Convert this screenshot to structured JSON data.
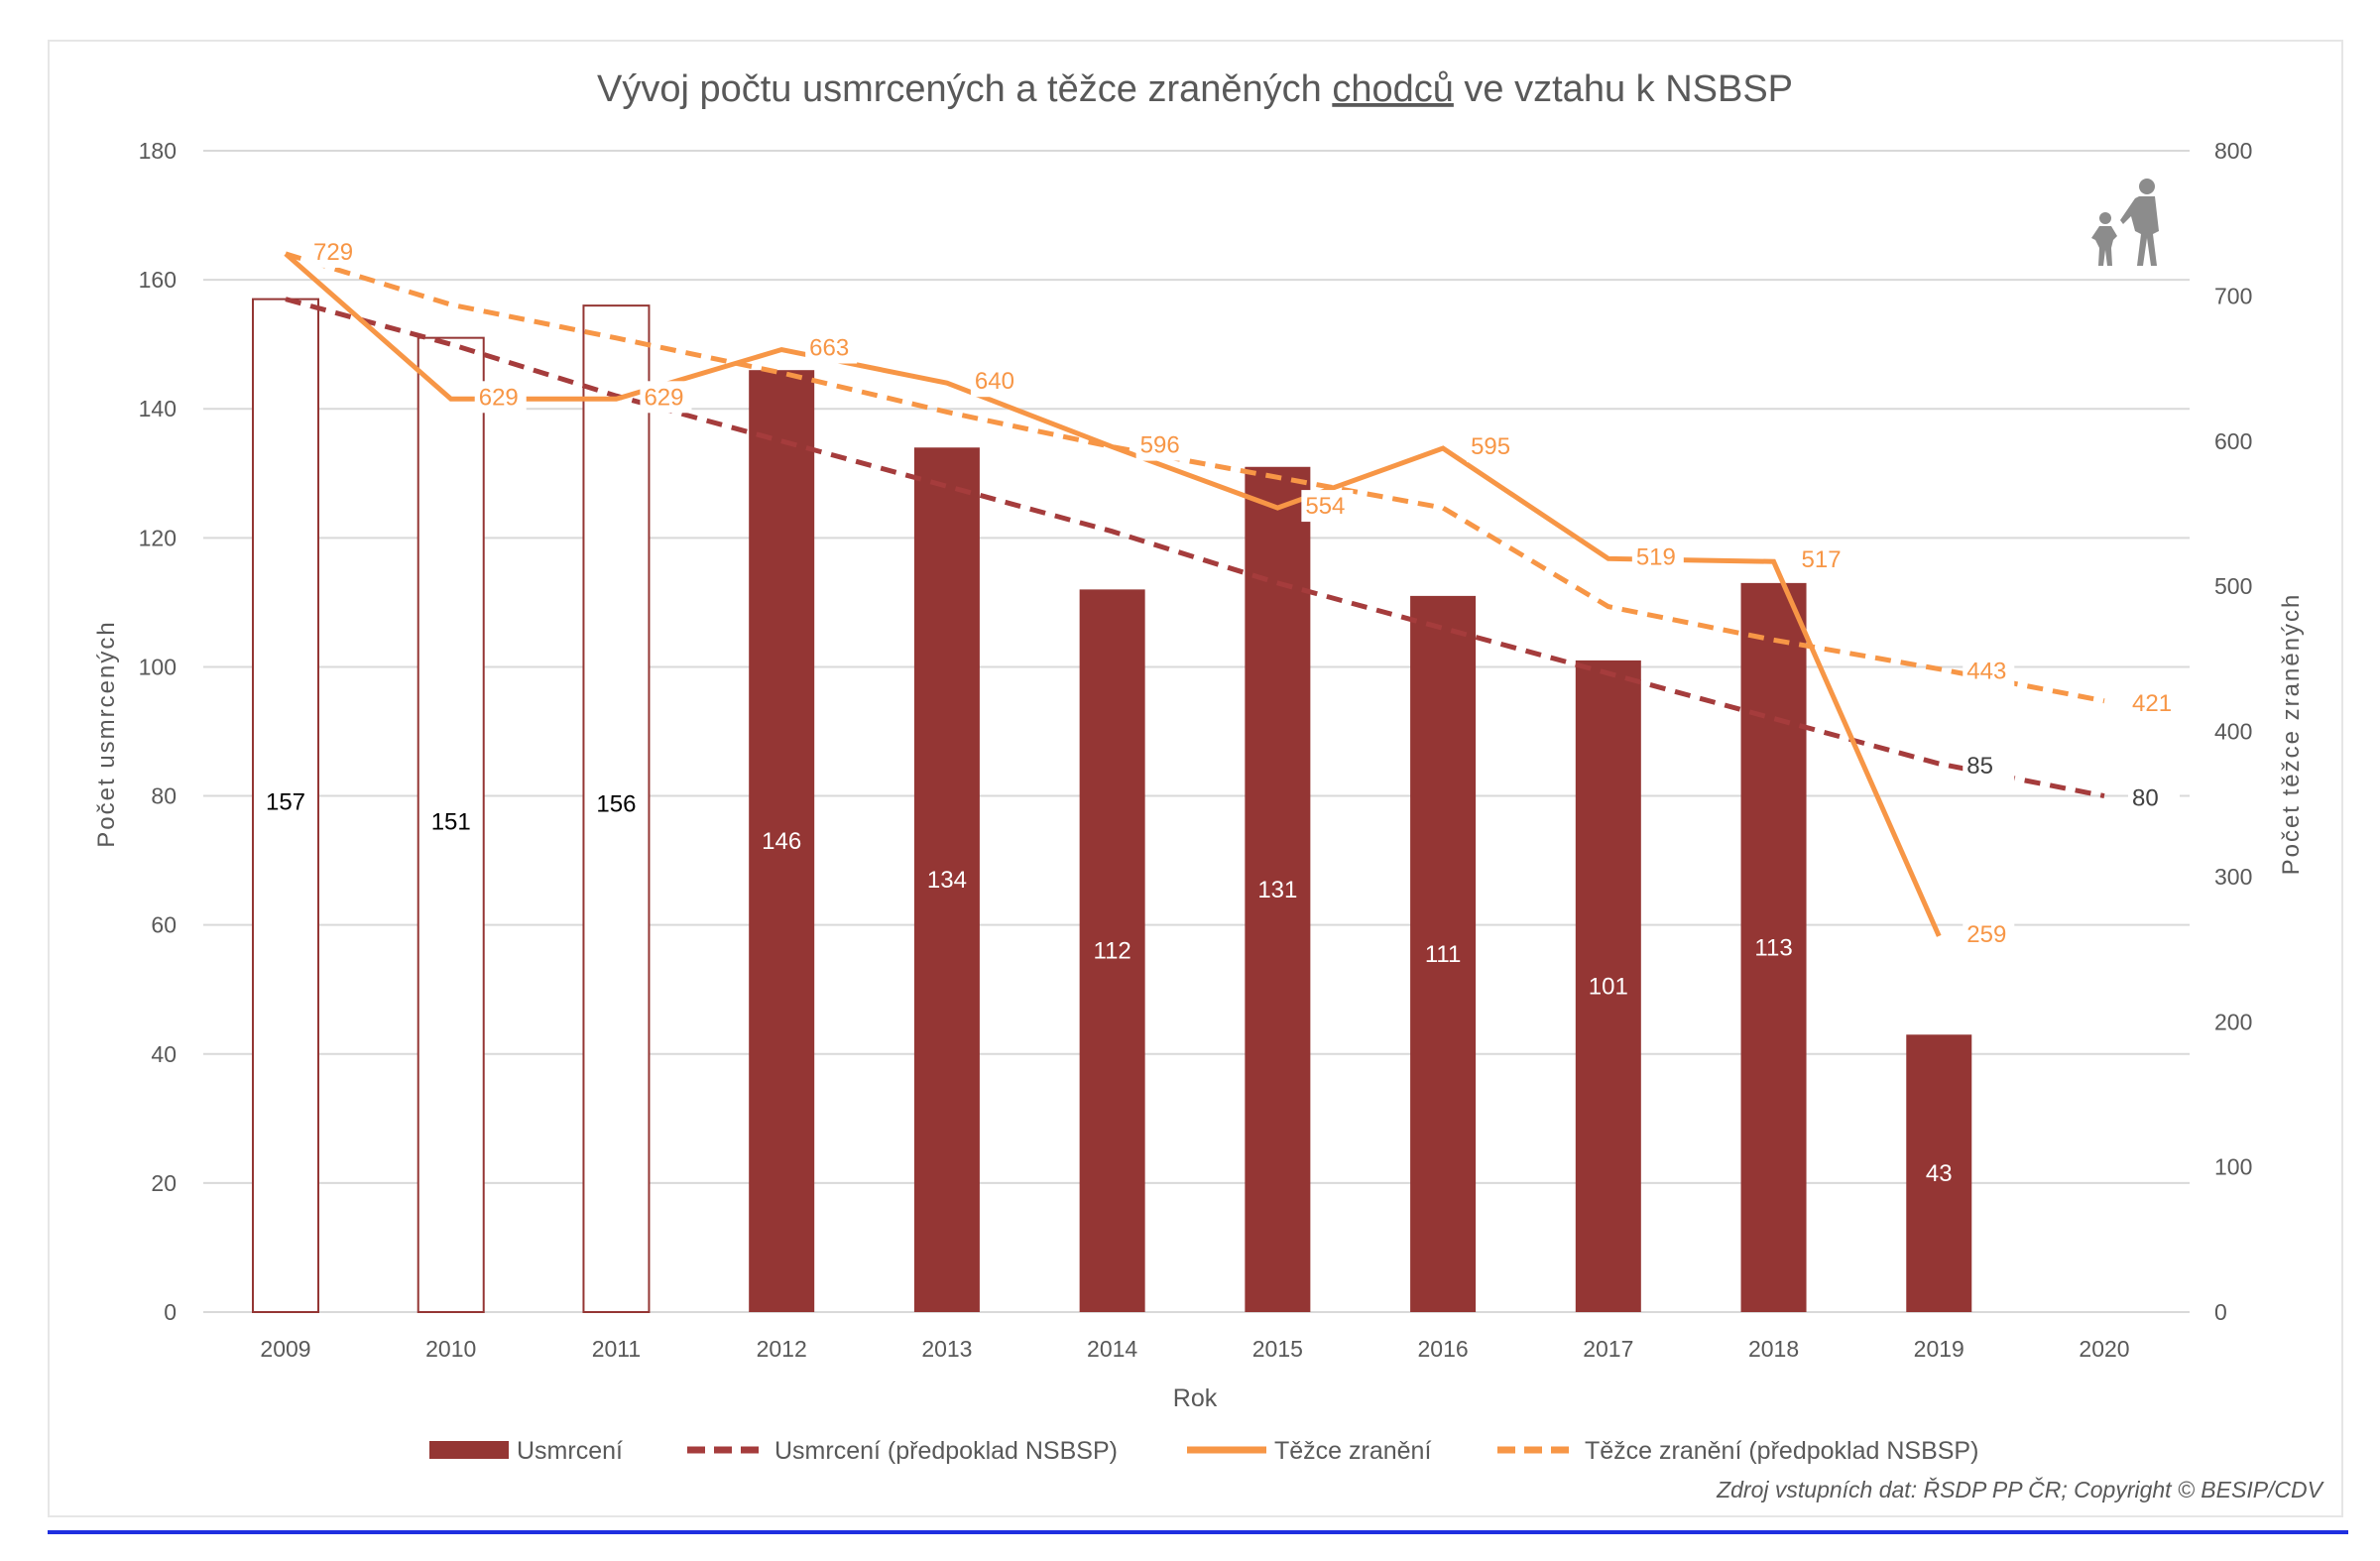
{
  "chart_data": {
    "type": "bar",
    "title_parts": [
      "Vývoj počtu usmrcených a těžce zraněných ",
      "chodců",
      " ve vztahu k NSBSP"
    ],
    "xlabel": "Rok",
    "ylabel": "Počet usmrcených",
    "y2label": "Počet těžce zraněných",
    "categories": [
      "2009",
      "2010",
      "2011",
      "2012",
      "2013",
      "2014",
      "2015",
      "2016",
      "2017",
      "2018",
      "2019",
      "2020"
    ],
    "ylim": [
      0,
      180
    ],
    "y_ticks": [
      "0",
      "20",
      "40",
      "60",
      "80",
      "100",
      "120",
      "140",
      "160",
      "180"
    ],
    "y2lim": [
      0,
      800
    ],
    "y2_ticks": [
      "0",
      "100",
      "200",
      "300",
      "400",
      "500",
      "600",
      "700",
      "800"
    ],
    "grid": true,
    "legend_position": "bottom",
    "series": [
      {
        "name": "Usmrcení",
        "type": "bar",
        "axis": "left",
        "color": "#943634",
        "values": [
          157,
          151,
          156,
          146,
          134,
          112,
          131,
          111,
          101,
          113,
          43,
          null
        ],
        "outlined_categories": [
          "2009",
          "2010",
          "2011"
        ],
        "labels": [
          "157",
          "151",
          "156",
          "146",
          "134",
          "112",
          "131",
          "111",
          "101",
          "113",
          "43",
          ""
        ]
      },
      {
        "name": "Usmrcení (předpoklad NSBSP)",
        "type": "line",
        "dash": true,
        "axis": "left",
        "color": "#a53c3c",
        "values": [
          157,
          150,
          142,
          135,
          128,
          121,
          113,
          106,
          99,
          92,
          85,
          80
        ],
        "labels": [
          "",
          "",
          "",
          "",
          "",
          "",
          "",
          "",
          "",
          "",
          "85",
          "80"
        ]
      },
      {
        "name": "Těžce zranění",
        "type": "line",
        "dash": false,
        "axis": "right",
        "color": "#f79646",
        "values": [
          729,
          629,
          629,
          663,
          640,
          596,
          554,
          595,
          519,
          517,
          259,
          null
        ],
        "labels": [
          "729",
          "629",
          "629",
          "663",
          "640",
          "596",
          "554",
          "595",
          "519",
          "517",
          "259",
          ""
        ]
      },
      {
        "name": "Těžce zranění (předpoklad NSBSP)",
        "type": "line",
        "dash": true,
        "axis": "right",
        "color": "#f79646",
        "values": [
          729,
          694,
          671,
          647,
          620,
          596,
          575,
          554,
          486,
          463,
          443,
          421
        ],
        "labels": [
          "",
          "",
          "",
          "",
          "",
          "",
          "",
          "",
          "",
          "",
          "443",
          "421"
        ]
      }
    ],
    "source": "Zdroj vstupních dat: ŘSDP PP ČR; Copyright © BESIP/CDV",
    "icon": "pedestrian-adult-child-icon"
  }
}
